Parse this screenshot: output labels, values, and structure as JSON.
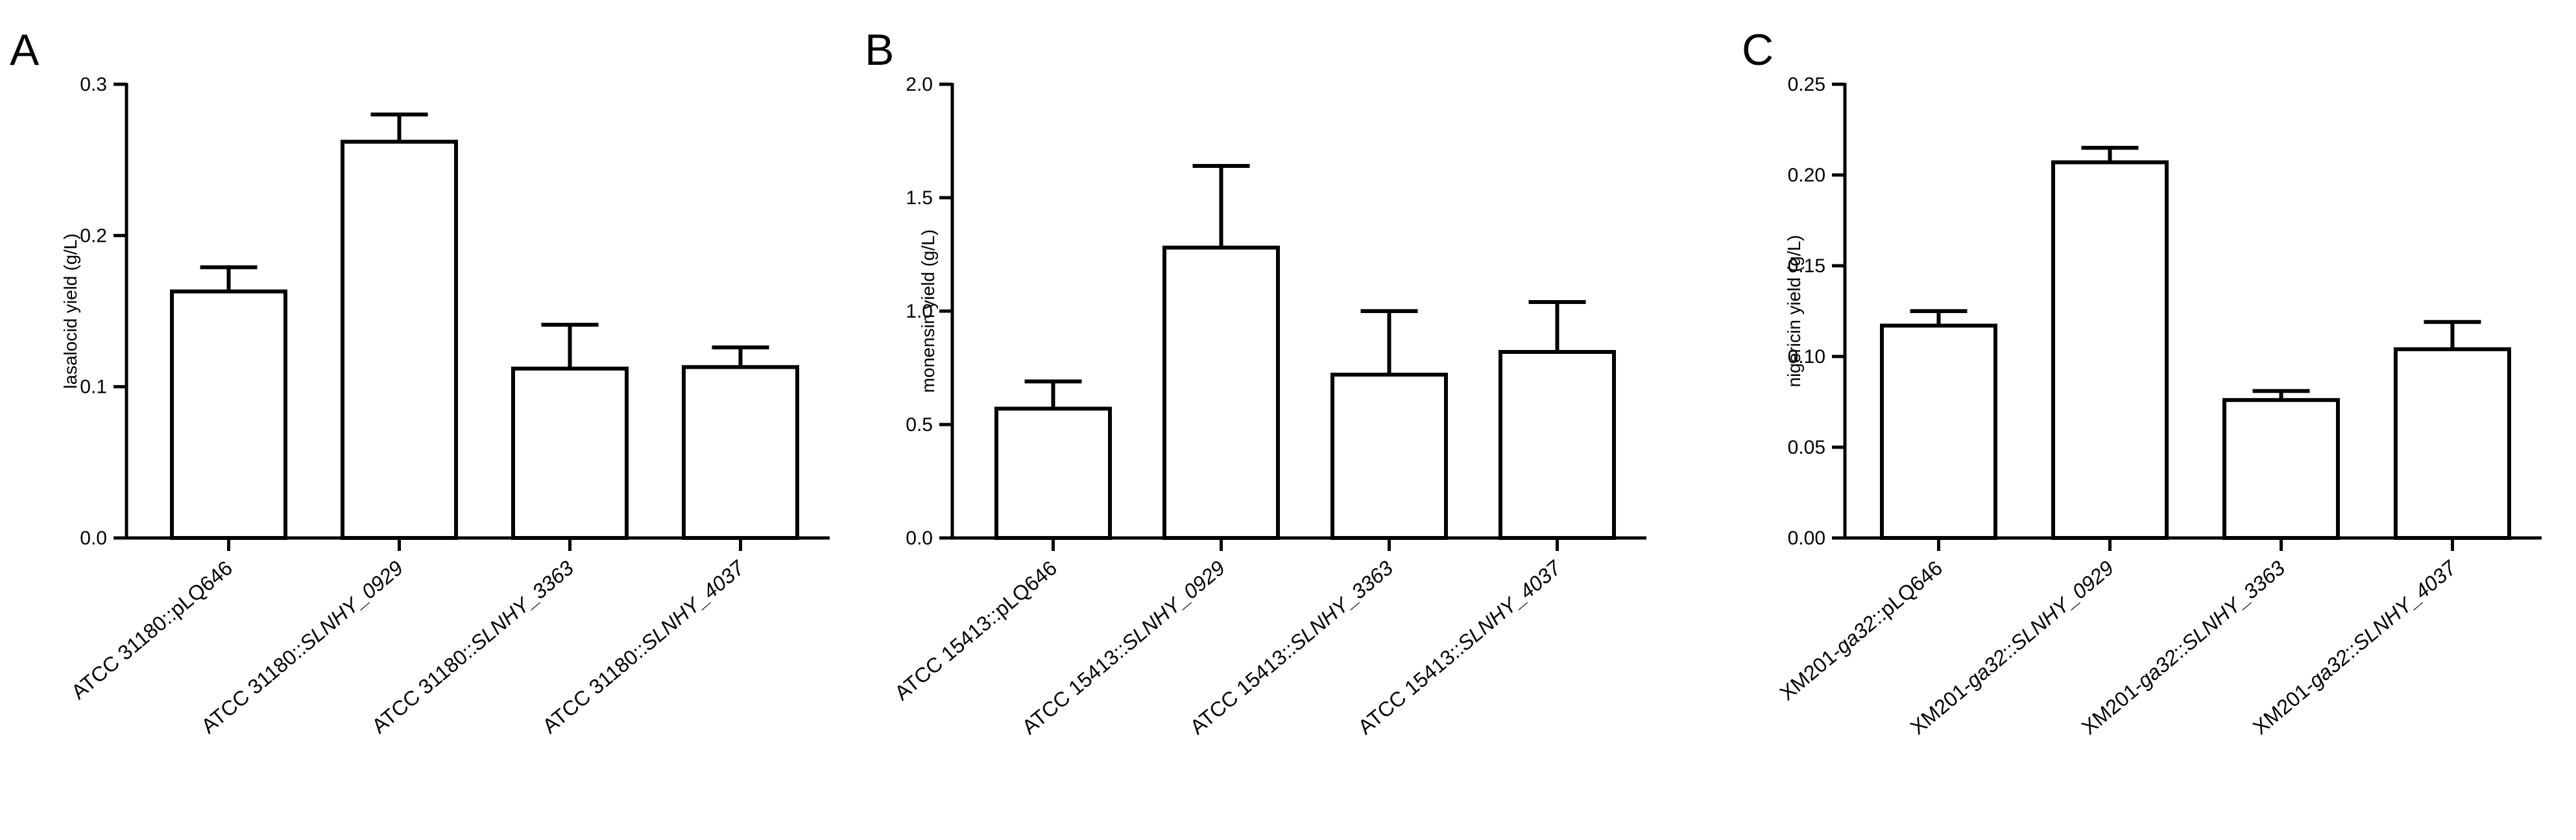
{
  "chart_data": [
    {
      "type": "bar",
      "panel": "A",
      "ylabel": "lasalocid yield (g/L)",
      "ylim": [
        0,
        0.3
      ],
      "yticks": [
        "0.0",
        "0.1",
        "0.2",
        "0.3"
      ],
      "categories": [
        {
          "prefix": "ATCC 31180::",
          "name": "pLQ646",
          "italic": false
        },
        {
          "prefix": "ATCC 31180::",
          "name": "SLNHY_0929",
          "italic": true
        },
        {
          "prefix": "ATCC 31180::",
          "name": "SLNHY_3363",
          "italic": true
        },
        {
          "prefix": "ATCC 31180::",
          "name": "SLNHY_4037",
          "italic": true
        }
      ],
      "values": [
        0.163,
        0.262,
        0.112,
        0.113
      ],
      "errors": [
        0.016,
        0.018,
        0.029,
        0.013
      ]
    },
    {
      "type": "bar",
      "panel": "B",
      "ylabel": "monensin yield (g/L)",
      "ylim": [
        0,
        2.0
      ],
      "yticks": [
        "0.0",
        "0.5",
        "1.0",
        "1.5",
        "2.0"
      ],
      "categories": [
        {
          "prefix": "ATCC 15413::",
          "name": "pLQ646",
          "italic": false
        },
        {
          "prefix": "ATCC 15413::",
          "name": "SLNHY_0929",
          "italic": true
        },
        {
          "prefix": "ATCC 15413::",
          "name": "SLNHY_3363",
          "italic": true
        },
        {
          "prefix": "ATCC 15413::",
          "name": "SLNHY_4037",
          "italic": true
        }
      ],
      "values": [
        0.57,
        1.28,
        0.72,
        0.82
      ],
      "errors": [
        0.12,
        0.36,
        0.28,
        0.22
      ]
    },
    {
      "type": "bar",
      "panel": "C",
      "ylabel": "nigericin yield (g/L)",
      "ylim": [
        0,
        0.25
      ],
      "yticks": [
        "0.00",
        "0.05",
        "0.10",
        "0.15",
        "0.20",
        "0.25"
      ],
      "categories": [
        {
          "prefix": "XM201-",
          "mid": "ga32",
          "sep": "::",
          "name": "pLQ646",
          "italic": false
        },
        {
          "prefix": "XM201-",
          "mid": "ga32",
          "sep": "::",
          "name": "SLNHY_0929",
          "italic": true
        },
        {
          "prefix": "XM201-",
          "mid": "ga32",
          "sep": "::",
          "name": "SLNHY_3363",
          "italic": true
        },
        {
          "prefix": "XM201-",
          "mid": "ga32",
          "sep": "::",
          "name": "SLNHY_4037",
          "italic": true
        }
      ],
      "values": [
        0.117,
        0.207,
        0.076,
        0.104
      ],
      "errors": [
        0.008,
        0.008,
        0.005,
        0.015
      ]
    }
  ]
}
